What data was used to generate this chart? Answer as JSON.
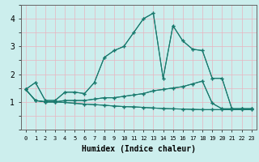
{
  "xlabel": "Humidex (Indice chaleur)",
  "bg_color": "#cceeed",
  "line_color": "#1a7a6e",
  "grid_color": "#e8b4c0",
  "xlim": [
    -0.5,
    23.5
  ],
  "ylim": [
    0,
    4.5
  ],
  "xticks": [
    0,
    1,
    2,
    3,
    4,
    5,
    6,
    7,
    8,
    9,
    10,
    11,
    12,
    13,
    14,
    15,
    16,
    17,
    18,
    19,
    20,
    21,
    22,
    23
  ],
  "yticks": [
    1,
    2,
    3,
    4
  ],
  "series": [
    [
      1.45,
      1.7,
      1.05,
      1.05,
      1.35,
      1.35,
      1.3,
      1.7,
      2.6,
      2.85,
      3.0,
      3.5,
      4.0,
      4.2,
      1.85,
      3.75,
      3.2,
      2.9,
      2.85,
      1.85,
      1.85,
      0.75,
      0.75,
      0.75
    ],
    [
      1.45,
      1.05,
      1.0,
      1.0,
      1.05,
      1.05,
      1.05,
      1.1,
      1.15,
      1.15,
      1.2,
      1.25,
      1.3,
      1.4,
      1.45,
      1.5,
      1.55,
      1.65,
      1.75,
      0.95,
      0.75,
      0.75,
      0.75,
      0.75
    ],
    [
      1.45,
      1.05,
      1.0,
      1.0,
      0.98,
      0.95,
      0.92,
      0.9,
      0.88,
      0.85,
      0.83,
      0.82,
      0.8,
      0.78,
      0.76,
      0.75,
      0.74,
      0.73,
      0.72,
      0.72,
      0.72,
      0.72,
      0.72,
      0.72
    ]
  ]
}
